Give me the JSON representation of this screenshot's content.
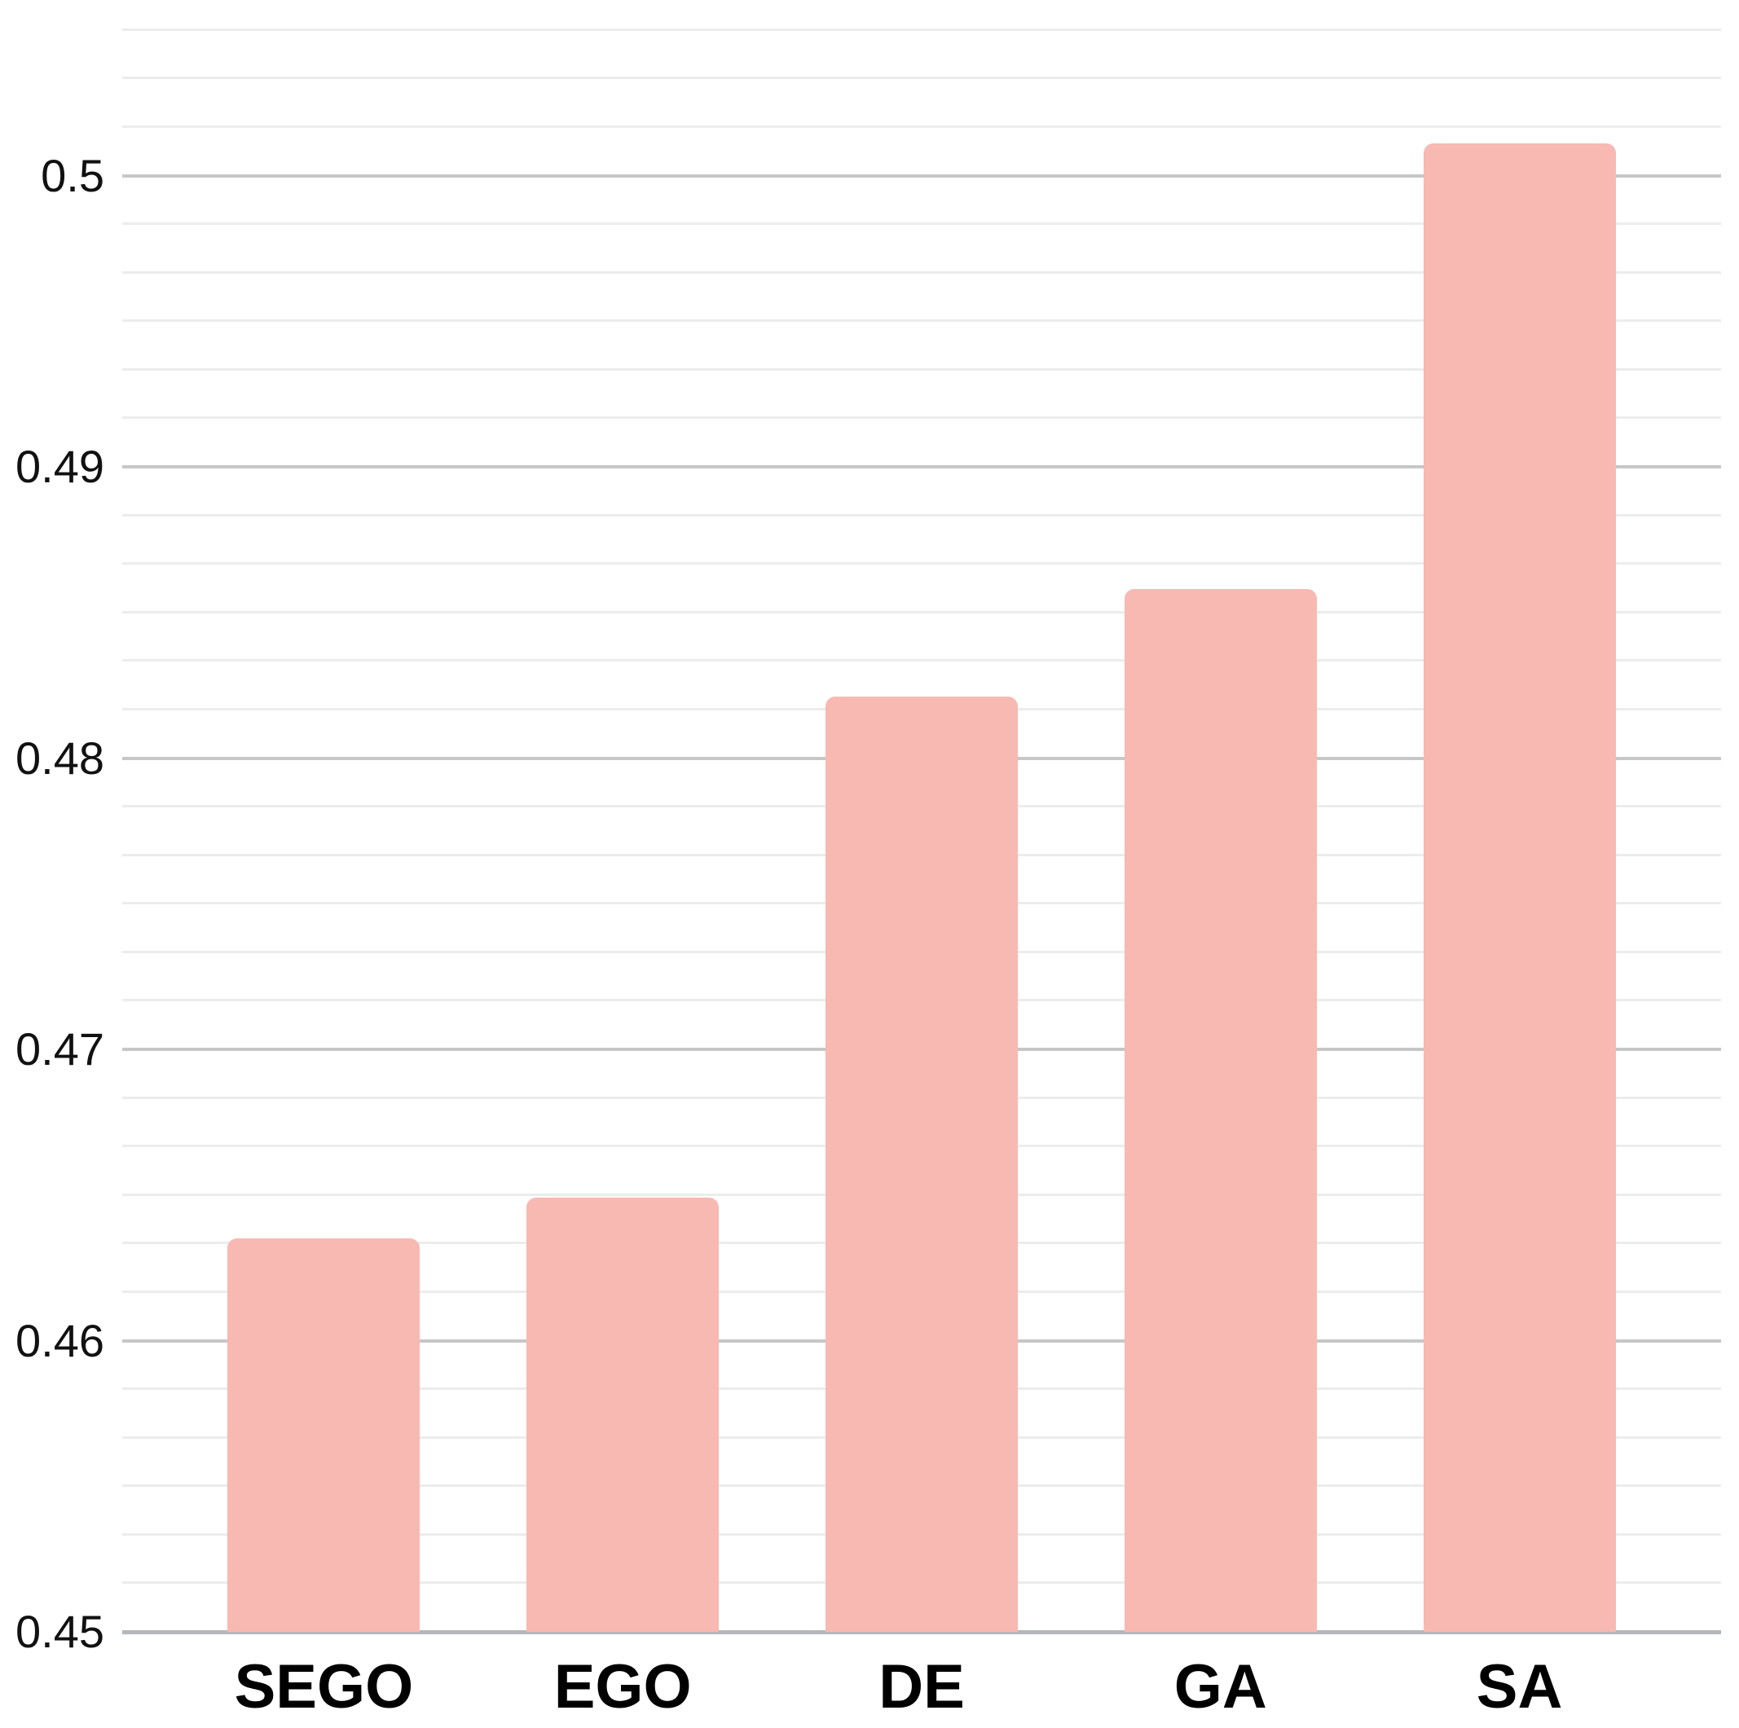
{
  "chart_data": {
    "type": "bar",
    "title": "",
    "xlabel": "",
    "ylabel": "",
    "categories": [
      "SEGO",
      "EGO",
      "DE",
      "GA",
      "SA"
    ],
    "values": [
      0.4635,
      0.4649,
      0.4821,
      0.4858,
      0.5011
    ],
    "ylim": [
      0.45,
      0.505
    ],
    "y_major_step": 0.01,
    "y_minor_divisions_per_major": 6,
    "y_tick_labels": [
      "0.45",
      "0.46",
      "0.47",
      "0.48",
      "0.49",
      "0.5"
    ],
    "grid": "horizontal-on",
    "legend": "none",
    "colors": {
      "bar_fill": "#f7b9b2",
      "minor_gridline": "#ececec",
      "major_gridline": "#c7c7c7",
      "axis_baseline": "#b3b7ba",
      "tick_label_text": "#111111",
      "category_label_text": "#000000",
      "background": "#ffffff"
    }
  }
}
